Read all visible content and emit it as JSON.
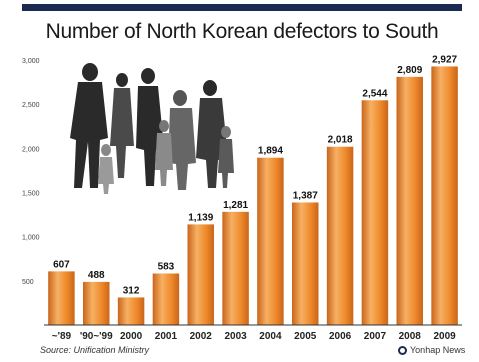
{
  "title": "Number of North Korean defectors to South",
  "source": "Source: Unification Ministry",
  "credit": "Yonhap News",
  "colors": {
    "bar": "#ef8a2b",
    "bar_light": "#f6b064",
    "bar_dark": "#c9651a",
    "axis": "#444444",
    "header": "#1b2a52"
  },
  "chart_data": {
    "type": "bar",
    "categories": [
      "~'89",
      "'90~'99",
      "2000",
      "2001",
      "2002",
      "2003",
      "2004",
      "2005",
      "2006",
      "2007",
      "2008",
      "2009"
    ],
    "values": [
      607,
      488,
      312,
      583,
      1139,
      1281,
      1894,
      1387,
      2018,
      2544,
      2809,
      2927
    ],
    "value_labels": [
      "607",
      "488",
      "312",
      "583",
      "1,139",
      "1,281",
      "1,894",
      "1,387",
      "2,018",
      "2,544",
      "2,809",
      "2,927"
    ],
    "ylim": [
      0,
      3000
    ],
    "yticks": [
      500,
      1000,
      1500,
      2000,
      2500,
      3000
    ],
    "ytick_labels": [
      "500",
      "1,000",
      "1,500",
      "2,000",
      "2,500",
      "3,000"
    ],
    "grid": false,
    "legend": "none"
  }
}
